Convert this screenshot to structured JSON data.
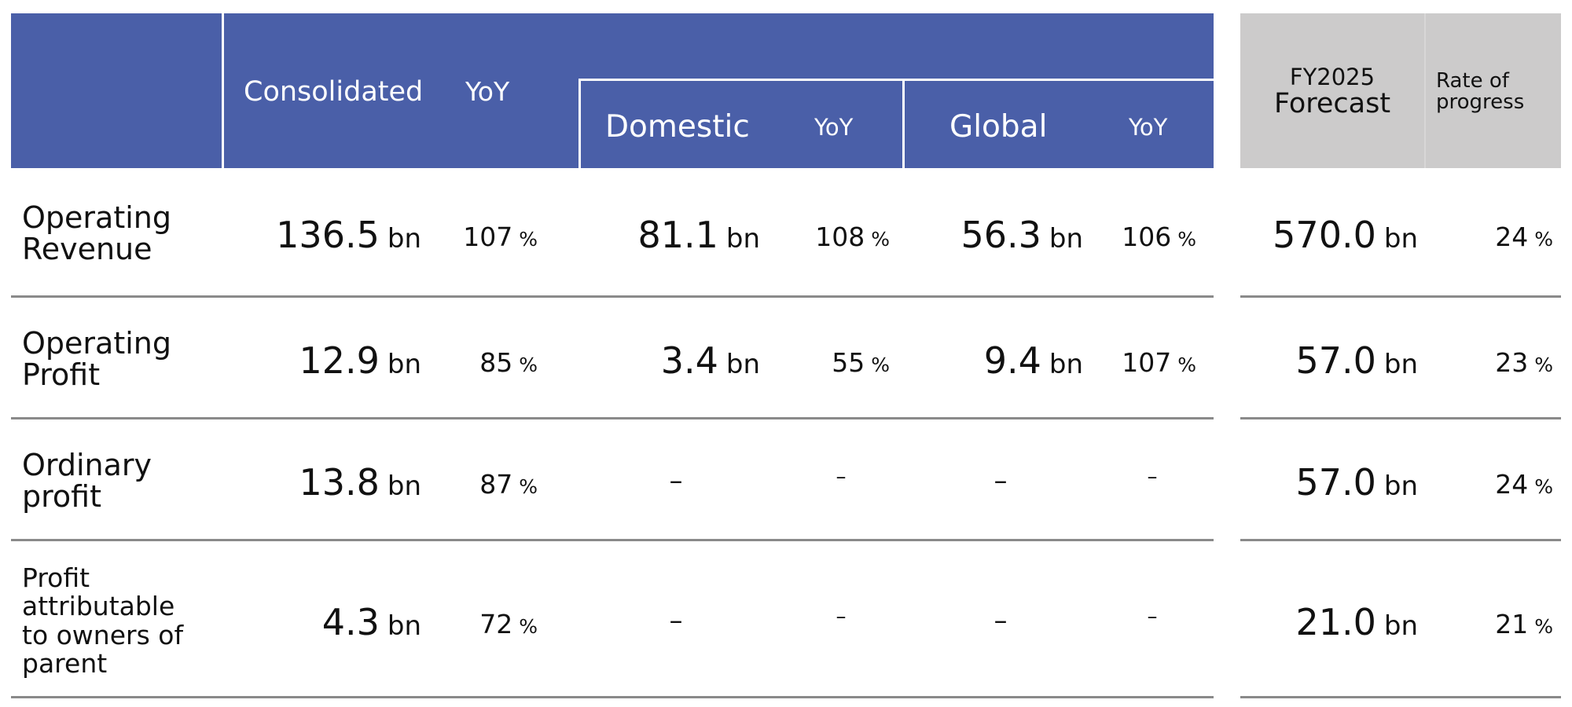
{
  "header": {
    "consolidated": "Consolidated",
    "yoy": "YoY",
    "domestic": "Domestic",
    "domestic_yoy": "YoY",
    "global": "Global",
    "global_yoy": "YoY",
    "forecast_line1": "FY2025",
    "forecast_line2": "Forecast",
    "progress_line1": "Rate of",
    "progress_line2": "progress"
  },
  "units": {
    "bn": "bn",
    "pct": "%",
    "dash": "–"
  },
  "rows": [
    {
      "label_1": "Operating",
      "label_2": "Revenue",
      "consolidated": "136.5",
      "yoy": "107",
      "domestic": "81.1",
      "domestic_yoy": "108",
      "global": "56.3",
      "global_yoy": "106",
      "forecast": "570.0",
      "progress": "24"
    },
    {
      "label_1": "Operating",
      "label_2": "Profit",
      "consolidated": "12.9",
      "yoy": "85",
      "domestic": "3.4",
      "domestic_yoy": "55",
      "global": "9.4",
      "global_yoy": "107",
      "forecast": "57.0",
      "progress": "23"
    },
    {
      "label_1": "Ordinary",
      "label_2": "profit",
      "consolidated": "13.8",
      "yoy": "87",
      "forecast": "57.0",
      "progress": "24"
    },
    {
      "label_1": "Profit",
      "label_2": "attributable",
      "label_3": "to owners of",
      "label_4": "parent",
      "consolidated": "4.3",
      "yoy": "72",
      "forecast": "21.0",
      "progress": "21"
    }
  ]
}
